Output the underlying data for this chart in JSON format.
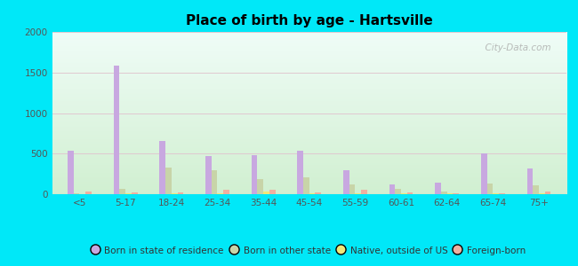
{
  "title": "Place of birth by age - Hartsville",
  "categories": [
    "<5",
    "5-17",
    "18-24",
    "25-34",
    "35-44",
    "45-54",
    "55-59",
    "60-61",
    "62-64",
    "65-74",
    "75+"
  ],
  "series": {
    "Born in state of residence": [
      540,
      1580,
      660,
      470,
      480,
      540,
      290,
      120,
      140,
      500,
      320
    ],
    "Born in other state": [
      10,
      70,
      330,
      290,
      190,
      210,
      120,
      70,
      30,
      130,
      110
    ],
    "Native, outside of US": [
      5,
      10,
      10,
      15,
      35,
      10,
      10,
      10,
      10,
      10,
      10
    ],
    "Foreign-born": [
      30,
      20,
      20,
      60,
      60,
      25,
      50,
      20,
      15,
      15,
      30
    ]
  },
  "colors": {
    "Born in state of residence": "#c8a8e0",
    "Born in other state": "#c8d4a8",
    "Native, outside of US": "#f0e878",
    "Foreign-born": "#f0b0a0"
  },
  "ylim": [
    0,
    2000
  ],
  "yticks": [
    0,
    500,
    1000,
    1500,
    2000
  ],
  "outer_bg": "#00e8f8",
  "watermark": "  City-Data.com"
}
